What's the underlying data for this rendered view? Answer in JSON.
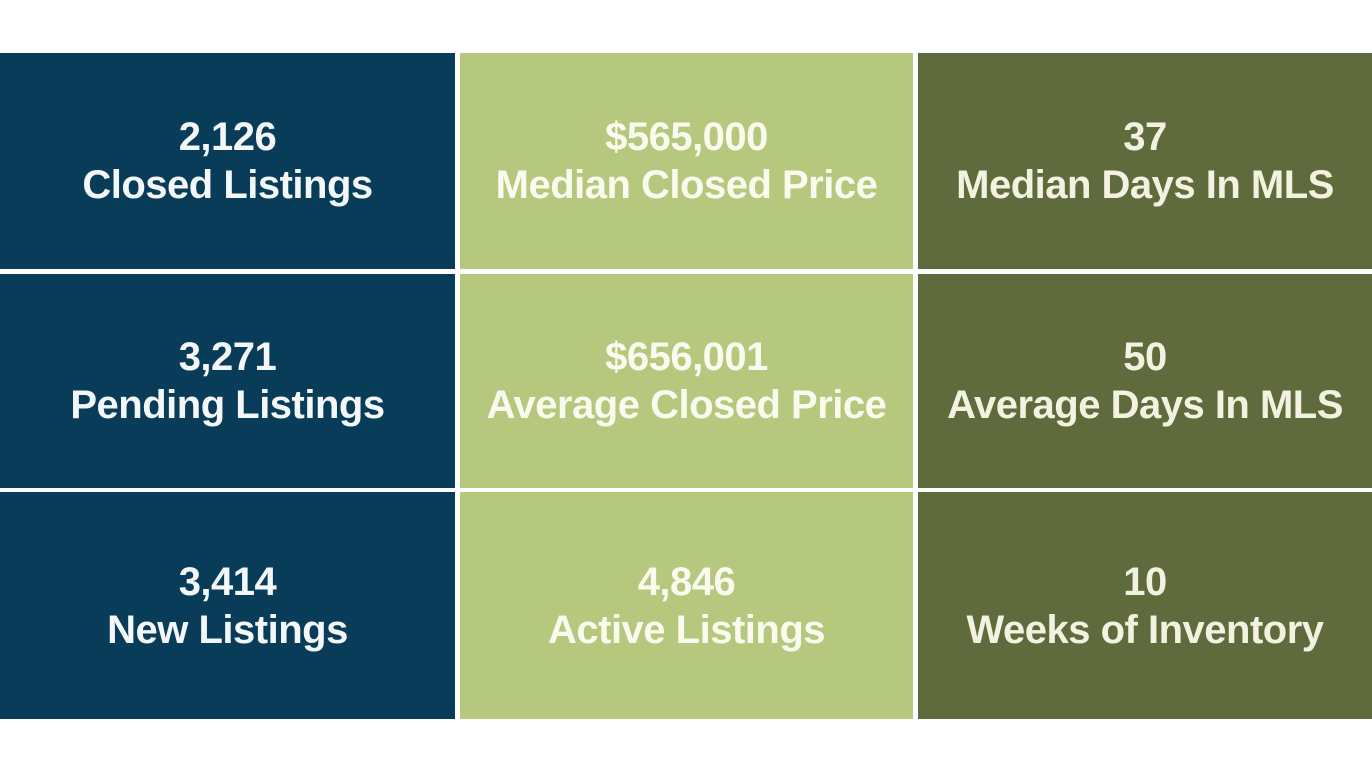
{
  "colors": {
    "page_background": "#ffffff",
    "gap": "#ffffff",
    "navy": "#093c58",
    "light_green": "#b6c87e",
    "dark_olive": "#5f6b3c",
    "text_on_navy": "#f4f7f8",
    "text_on_green": "#fbfaee",
    "text_on_olive": "#f3f1df"
  },
  "tiles": [
    {
      "value": "2,126",
      "label": "Closed Listings",
      "bg": "#093c58",
      "fg": "#f4f7f8"
    },
    {
      "value": "$565,000",
      "label": "Median Closed Price",
      "bg": "#b6c87e",
      "fg": "#fbfaee"
    },
    {
      "value": "37",
      "label": "Median Days In MLS",
      "bg": "#5f6b3c",
      "fg": "#f3f1df"
    },
    {
      "value": "3,271",
      "label": "Pending Listings",
      "bg": "#093c58",
      "fg": "#f4f7f8"
    },
    {
      "value": "$656,001",
      "label": "Average Closed Price",
      "bg": "#b6c87e",
      "fg": "#fbfaee"
    },
    {
      "value": "50",
      "label": "Average Days In MLS",
      "bg": "#5f6b3c",
      "fg": "#f3f1df"
    },
    {
      "value": "3,414",
      "label": "New Listings",
      "bg": "#093c58",
      "fg": "#f4f7f8"
    },
    {
      "value": "4,846",
      "label": "Active Listings",
      "bg": "#b6c87e",
      "fg": "#fbfaee"
    },
    {
      "value": "10",
      "label": "Weeks of Inventory",
      "bg": "#5f6b3c",
      "fg": "#f3f1df"
    }
  ],
  "chart_data": {
    "type": "table",
    "title": "",
    "layout": "3x3-grid",
    "metrics": [
      {
        "label": "Closed Listings",
        "value": 2126,
        "display": "2,126"
      },
      {
        "label": "Median Closed Price",
        "value": 565000,
        "display": "$565,000"
      },
      {
        "label": "Median Days In MLS",
        "value": 37,
        "display": "37"
      },
      {
        "label": "Pending Listings",
        "value": 3271,
        "display": "3,271"
      },
      {
        "label": "Average Closed Price",
        "value": 656001,
        "display": "$656,001"
      },
      {
        "label": "Average Days In MLS",
        "value": 50,
        "display": "50"
      },
      {
        "label": "New Listings",
        "value": 3414,
        "display": "3,414"
      },
      {
        "label": "Active Listings",
        "value": 4846,
        "display": "4,846"
      },
      {
        "label": "Weeks of Inventory",
        "value": 10,
        "display": "10"
      }
    ]
  }
}
